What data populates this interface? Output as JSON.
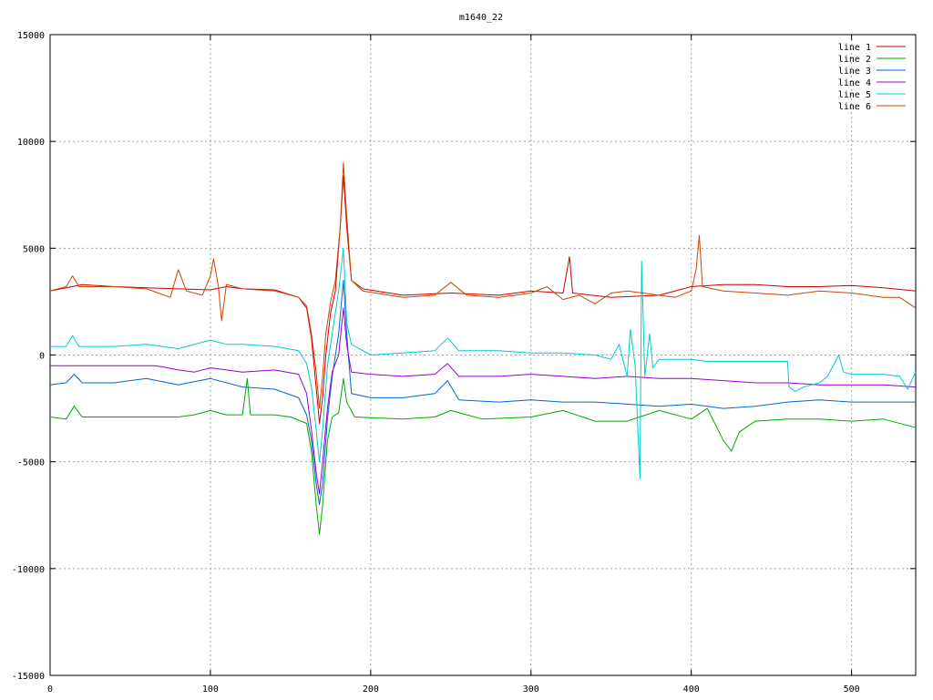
{
  "chart_data": {
    "type": "line",
    "title": "m1640_22",
    "xlabel": "",
    "ylabel": "",
    "xlim": [
      0,
      540
    ],
    "ylim": [
      -15000,
      15000
    ],
    "x_ticks": [
      0,
      100,
      200,
      300,
      400,
      500
    ],
    "y_ticks": [
      -15000,
      -10000,
      -5000,
      0,
      5000,
      10000,
      15000
    ],
    "grid": true,
    "legend_position": "top-right",
    "series": [
      {
        "name": "line 1",
        "color": "#cc0000",
        "points": [
          [
            0,
            3000
          ],
          [
            20,
            3300
          ],
          [
            40,
            3200
          ],
          [
            60,
            3150
          ],
          [
            80,
            3100
          ],
          [
            100,
            3050
          ],
          [
            110,
            3200
          ],
          [
            120,
            3100
          ],
          [
            140,
            3050
          ],
          [
            155,
            2700
          ],
          [
            160,
            2200
          ],
          [
            163,
            800
          ],
          [
            166,
            -1500
          ],
          [
            168,
            -3200
          ],
          [
            170,
            -2000
          ],
          [
            172,
            0
          ],
          [
            175,
            2000
          ],
          [
            178,
            3000
          ],
          [
            181,
            6000
          ],
          [
            183,
            8400
          ],
          [
            185,
            6000
          ],
          [
            188,
            3500
          ],
          [
            195,
            3100
          ],
          [
            220,
            2800
          ],
          [
            250,
            2900
          ],
          [
            280,
            2800
          ],
          [
            300,
            3000
          ],
          [
            320,
            2900
          ],
          [
            324,
            4600
          ],
          [
            326,
            2900
          ],
          [
            350,
            2700
          ],
          [
            380,
            2800
          ],
          [
            400,
            3200
          ],
          [
            420,
            3300
          ],
          [
            440,
            3300
          ],
          [
            460,
            3200
          ],
          [
            480,
            3200
          ],
          [
            500,
            3250
          ],
          [
            520,
            3150
          ],
          [
            540,
            3000
          ]
        ]
      },
      {
        "name": "line 2",
        "color": "#00aa00",
        "points": [
          [
            0,
            -2900
          ],
          [
            10,
            -3000
          ],
          [
            15,
            -2400
          ],
          [
            20,
            -2900
          ],
          [
            40,
            -2900
          ],
          [
            60,
            -2900
          ],
          [
            80,
            -2900
          ],
          [
            90,
            -2800
          ],
          [
            100,
            -2600
          ],
          [
            110,
            -2800
          ],
          [
            120,
            -2800
          ],
          [
            123,
            -1100
          ],
          [
            125,
            -2800
          ],
          [
            140,
            -2800
          ],
          [
            150,
            -2900
          ],
          [
            160,
            -3200
          ],
          [
            163,
            -4500
          ],
          [
            166,
            -7000
          ],
          [
            168,
            -8400
          ],
          [
            170,
            -7000
          ],
          [
            173,
            -4000
          ],
          [
            176,
            -2900
          ],
          [
            180,
            -2700
          ],
          [
            183,
            -1100
          ],
          [
            185,
            -2200
          ],
          [
            190,
            -2900
          ],
          [
            220,
            -3000
          ],
          [
            240,
            -2900
          ],
          [
            250,
            -2600
          ],
          [
            270,
            -3000
          ],
          [
            300,
            -2900
          ],
          [
            320,
            -2600
          ],
          [
            340,
            -3100
          ],
          [
            360,
            -3100
          ],
          [
            380,
            -2600
          ],
          [
            400,
            -3000
          ],
          [
            410,
            -2500
          ],
          [
            420,
            -4000
          ],
          [
            425,
            -4500
          ],
          [
            430,
            -3600
          ],
          [
            440,
            -3100
          ],
          [
            460,
            -3000
          ],
          [
            480,
            -3000
          ],
          [
            500,
            -3100
          ],
          [
            520,
            -3000
          ],
          [
            540,
            -3400
          ]
        ]
      },
      {
        "name": "line 3",
        "color": "#0066cc",
        "points": [
          [
            0,
            -1400
          ],
          [
            10,
            -1300
          ],
          [
            15,
            -900
          ],
          [
            20,
            -1300
          ],
          [
            40,
            -1300
          ],
          [
            60,
            -1100
          ],
          [
            80,
            -1400
          ],
          [
            100,
            -1100
          ],
          [
            120,
            -1500
          ],
          [
            140,
            -1600
          ],
          [
            155,
            -2000
          ],
          [
            160,
            -2800
          ],
          [
            163,
            -4000
          ],
          [
            166,
            -6000
          ],
          [
            168,
            -7000
          ],
          [
            170,
            -6000
          ],
          [
            173,
            -3000
          ],
          [
            176,
            -1000
          ],
          [
            180,
            1000
          ],
          [
            183,
            3500
          ],
          [
            185,
            1000
          ],
          [
            188,
            -1800
          ],
          [
            200,
            -2000
          ],
          [
            220,
            -2000
          ],
          [
            240,
            -1800
          ],
          [
            248,
            -1200
          ],
          [
            255,
            -2100
          ],
          [
            280,
            -2200
          ],
          [
            300,
            -2100
          ],
          [
            320,
            -2200
          ],
          [
            340,
            -2200
          ],
          [
            360,
            -2300
          ],
          [
            380,
            -2400
          ],
          [
            400,
            -2300
          ],
          [
            420,
            -2500
          ],
          [
            440,
            -2400
          ],
          [
            460,
            -2200
          ],
          [
            480,
            -2100
          ],
          [
            500,
            -2200
          ],
          [
            520,
            -2200
          ],
          [
            540,
            -2200
          ]
        ]
      },
      {
        "name": "line 4",
        "color": "#9900cc",
        "points": [
          [
            0,
            -500
          ],
          [
            40,
            -500
          ],
          [
            60,
            -500
          ],
          [
            65,
            -500
          ],
          [
            70,
            -550
          ],
          [
            80,
            -700
          ],
          [
            90,
            -800
          ],
          [
            100,
            -600
          ],
          [
            110,
            -700
          ],
          [
            120,
            -800
          ],
          [
            140,
            -700
          ],
          [
            155,
            -900
          ],
          [
            160,
            -1800
          ],
          [
            163,
            -3500
          ],
          [
            166,
            -5500
          ],
          [
            168,
            -6500
          ],
          [
            170,
            -5000
          ],
          [
            173,
            -2500
          ],
          [
            176,
            -800
          ],
          [
            180,
            0
          ],
          [
            183,
            2200
          ],
          [
            185,
            500
          ],
          [
            188,
            -800
          ],
          [
            200,
            -900
          ],
          [
            220,
            -1000
          ],
          [
            240,
            -900
          ],
          [
            248,
            -400
          ],
          [
            255,
            -1000
          ],
          [
            280,
            -1000
          ],
          [
            300,
            -900
          ],
          [
            320,
            -1000
          ],
          [
            340,
            -1100
          ],
          [
            360,
            -1000
          ],
          [
            380,
            -1100
          ],
          [
            400,
            -1100
          ],
          [
            420,
            -1200
          ],
          [
            440,
            -1300
          ],
          [
            460,
            -1300
          ],
          [
            480,
            -1400
          ],
          [
            500,
            -1400
          ],
          [
            520,
            -1400
          ],
          [
            540,
            -1500
          ]
        ]
      },
      {
        "name": "line 5",
        "color": "#00cccc",
        "points": [
          [
            0,
            400
          ],
          [
            10,
            400
          ],
          [
            14,
            900
          ],
          [
            18,
            400
          ],
          [
            40,
            400
          ],
          [
            60,
            500
          ],
          [
            80,
            300
          ],
          [
            100,
            700
          ],
          [
            110,
            500
          ],
          [
            120,
            500
          ],
          [
            140,
            400
          ],
          [
            155,
            200
          ],
          [
            160,
            -400
          ],
          [
            163,
            -1500
          ],
          [
            166,
            -3500
          ],
          [
            168,
            -5000
          ],
          [
            170,
            -3500
          ],
          [
            173,
            -500
          ],
          [
            176,
            1000
          ],
          [
            180,
            3000
          ],
          [
            183,
            5000
          ],
          [
            185,
            1500
          ],
          [
            188,
            500
          ],
          [
            200,
            0
          ],
          [
            220,
            100
          ],
          [
            240,
            200
          ],
          [
            248,
            800
          ],
          [
            255,
            200
          ],
          [
            280,
            200
          ],
          [
            300,
            100
          ],
          [
            320,
            100
          ],
          [
            340,
            0
          ],
          [
            350,
            -200
          ],
          [
            355,
            500
          ],
          [
            360,
            -1000
          ],
          [
            362,
            1200
          ],
          [
            365,
            -500
          ],
          [
            368,
            -5800
          ],
          [
            369,
            4400
          ],
          [
            371,
            -1000
          ],
          [
            374,
            1000
          ],
          [
            376,
            -600
          ],
          [
            380,
            -200
          ],
          [
            400,
            -200
          ],
          [
            410,
            -300
          ],
          [
            440,
            -300
          ],
          [
            460,
            -300
          ],
          [
            461,
            -1500
          ],
          [
            465,
            -1700
          ],
          [
            470,
            -1500
          ],
          [
            480,
            -1300
          ],
          [
            485,
            -1000
          ],
          [
            492,
            0
          ],
          [
            495,
            -800
          ],
          [
            500,
            -900
          ],
          [
            520,
            -900
          ],
          [
            530,
            -1000
          ],
          [
            535,
            -1600
          ],
          [
            540,
            -800
          ]
        ]
      },
      {
        "name": "line 6",
        "color": "#cc4400",
        "points": [
          [
            0,
            3000
          ],
          [
            10,
            3200
          ],
          [
            14,
            3700
          ],
          [
            18,
            3200
          ],
          [
            40,
            3200
          ],
          [
            60,
            3100
          ],
          [
            75,
            2700
          ],
          [
            80,
            4000
          ],
          [
            85,
            3000
          ],
          [
            95,
            2800
          ],
          [
            100,
            3700
          ],
          [
            102,
            4500
          ],
          [
            105,
            3200
          ],
          [
            107,
            1600
          ],
          [
            110,
            3300
          ],
          [
            120,
            3100
          ],
          [
            140,
            3000
          ],
          [
            155,
            2700
          ],
          [
            160,
            2300
          ],
          [
            163,
            1000
          ],
          [
            166,
            -800
          ],
          [
            168,
            -2500
          ],
          [
            170,
            -1000
          ],
          [
            172,
            1000
          ],
          [
            175,
            2500
          ],
          [
            178,
            3500
          ],
          [
            181,
            6000
          ],
          [
            183,
            9000
          ],
          [
            185,
            6500
          ],
          [
            188,
            3500
          ],
          [
            195,
            3000
          ],
          [
            220,
            2700
          ],
          [
            240,
            2800
          ],
          [
            250,
            3400
          ],
          [
            260,
            2800
          ],
          [
            280,
            2700
          ],
          [
            300,
            2900
          ],
          [
            310,
            3200
          ],
          [
            320,
            2600
          ],
          [
            330,
            2800
          ],
          [
            340,
            2400
          ],
          [
            350,
            2900
          ],
          [
            360,
            3000
          ],
          [
            380,
            2800
          ],
          [
            390,
            2700
          ],
          [
            400,
            3000
          ],
          [
            403,
            4000
          ],
          [
            405,
            5600
          ],
          [
            407,
            3200
          ],
          [
            420,
            3000
          ],
          [
            440,
            2900
          ],
          [
            460,
            2800
          ],
          [
            480,
            3000
          ],
          [
            500,
            2900
          ],
          [
            520,
            2700
          ],
          [
            530,
            2700
          ],
          [
            540,
            2200
          ]
        ]
      }
    ]
  }
}
